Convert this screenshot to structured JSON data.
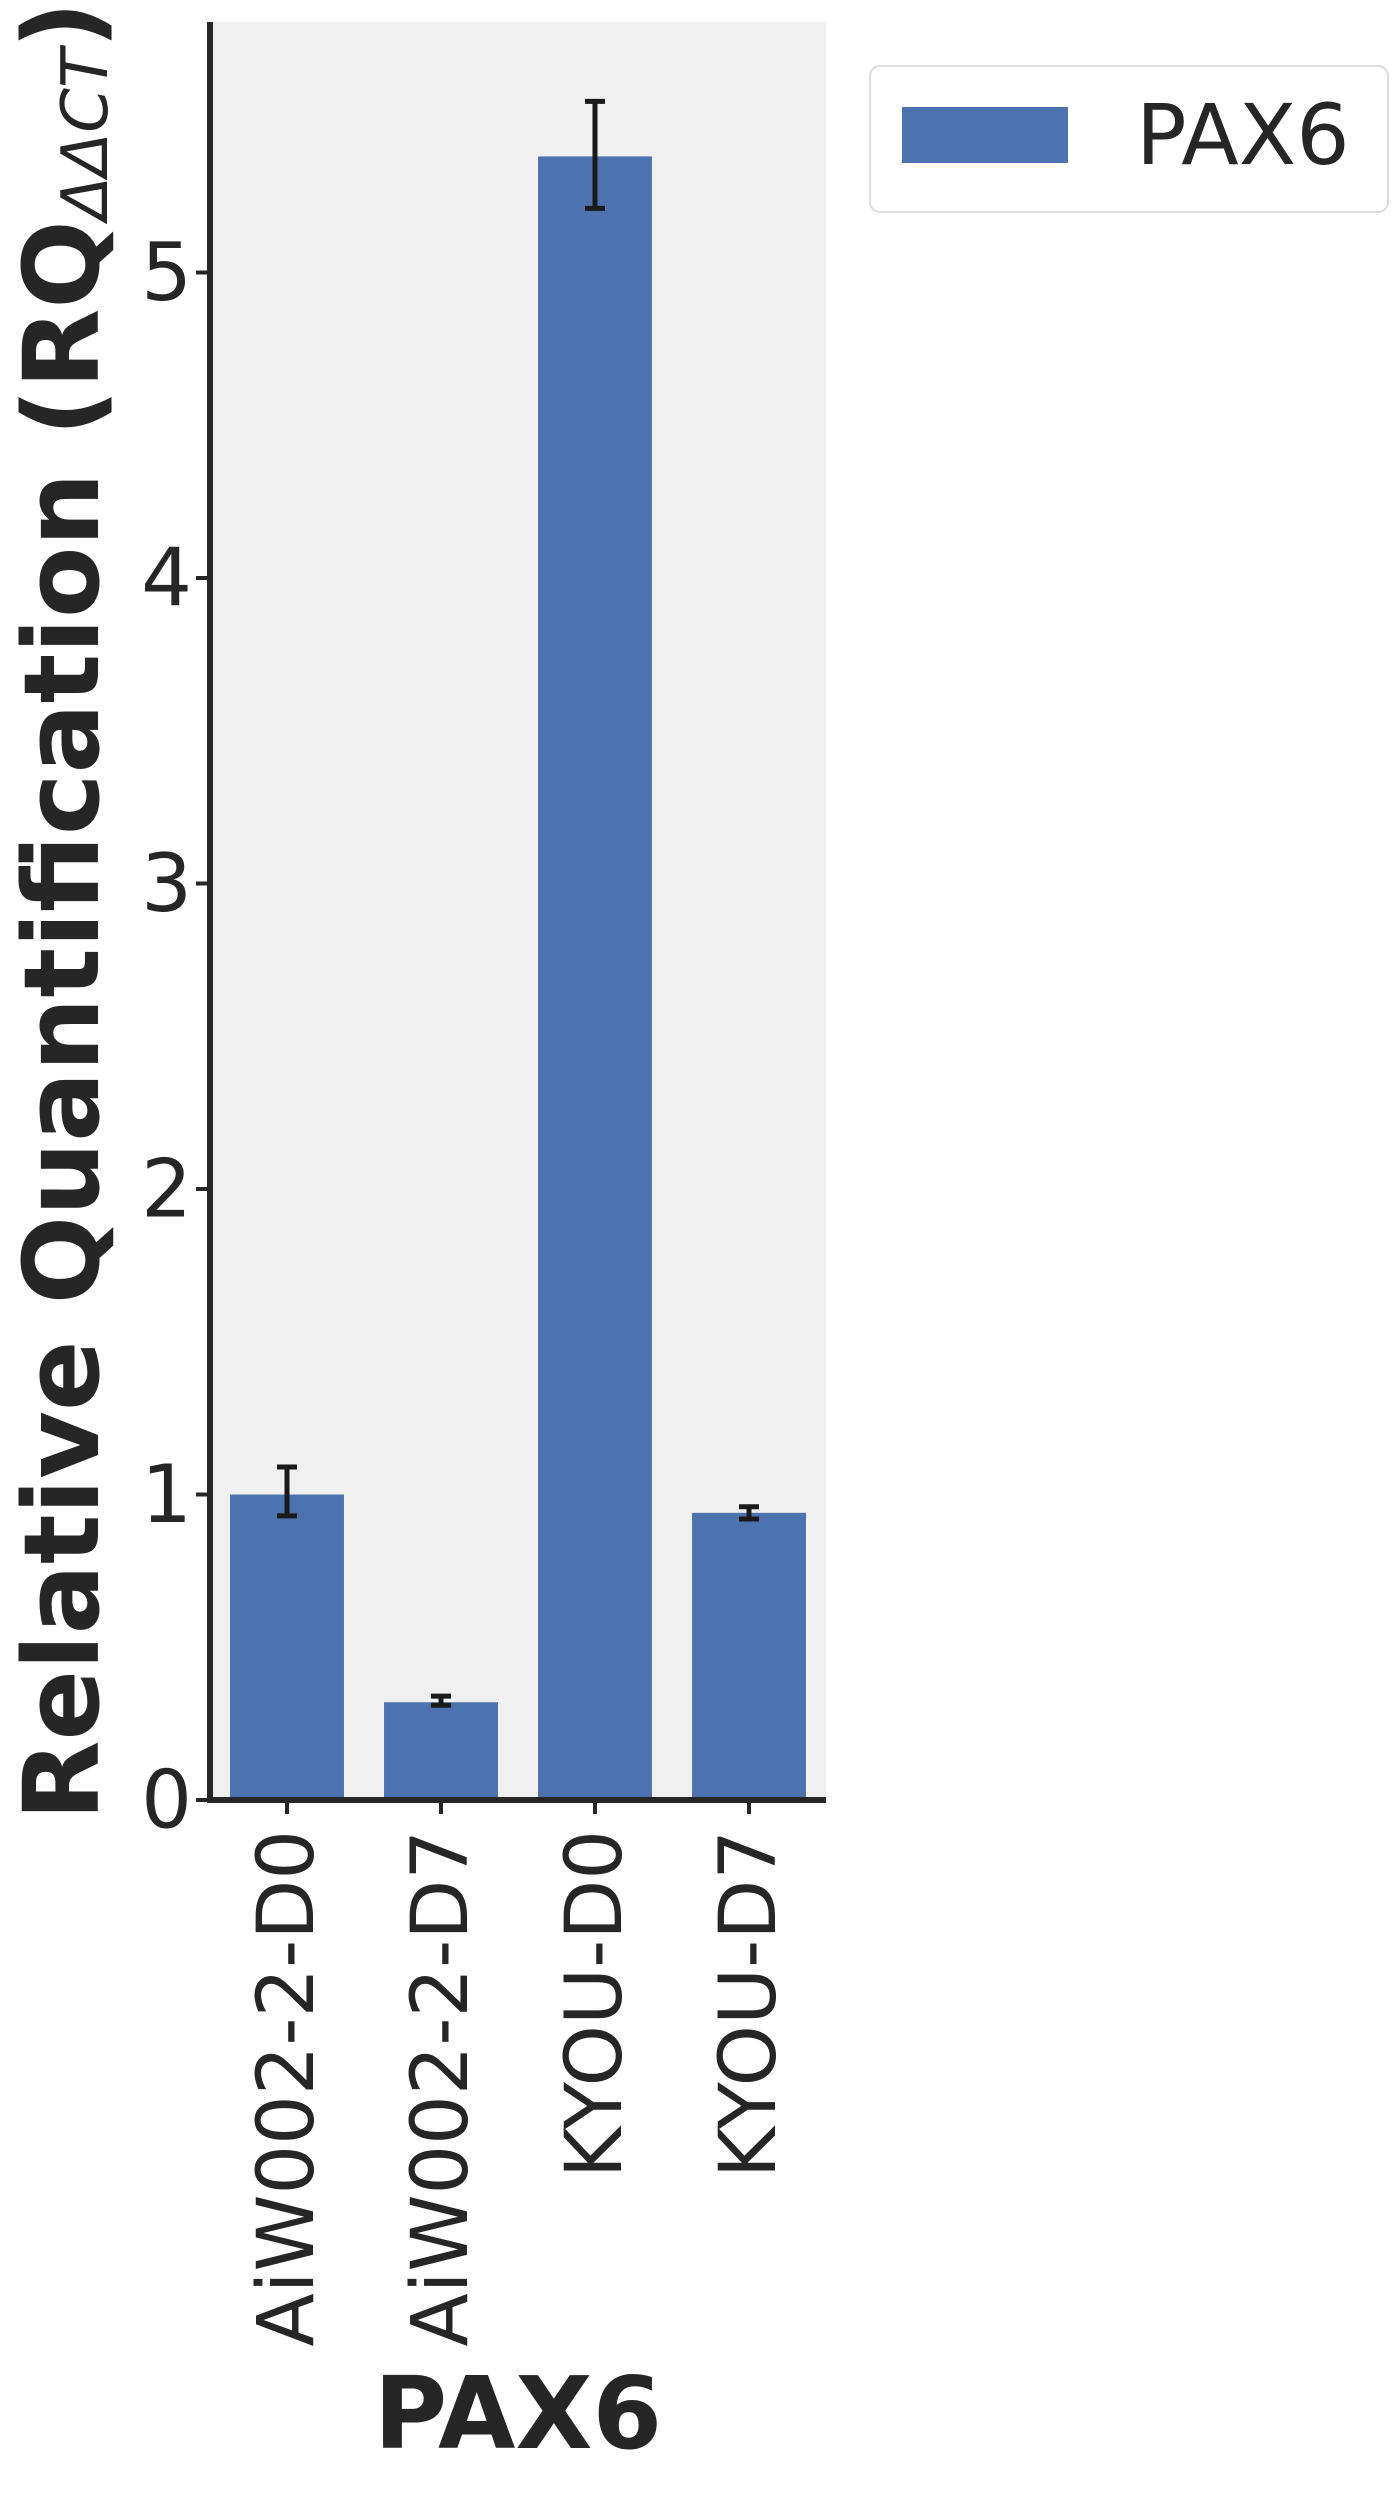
{
  "chart_data": {
    "type": "bar",
    "categories": [
      "AiW002-2-D0",
      "AiW002-2-D7",
      "KYOU-D0",
      "KYOU-D7"
    ],
    "series": [
      {
        "name": "PAX6",
        "values": [
          1.0,
          0.32,
          5.38,
          0.94
        ],
        "error_low": [
          0.93,
          0.31,
          5.21,
          0.92
        ],
        "error_high": [
          1.09,
          0.34,
          5.56,
          0.96
        ],
        "color": "#4c72b0"
      }
    ],
    "ylabel_main": "Relative Quantification (RQ",
    "ylabel_sub": "ΔΔCT",
    "ylabel_close": ")",
    "xlabel": "PAX6",
    "ylim": [
      0,
      5.82
    ],
    "yticks": [
      "0",
      "1",
      "2",
      "3",
      "4",
      "5"
    ],
    "legend_position": "upper right, outside plot",
    "grid": false,
    "plot_background": "#f0f0f0",
    "axis_color": "#262626",
    "errorbar_color": "#1a1a1a"
  }
}
